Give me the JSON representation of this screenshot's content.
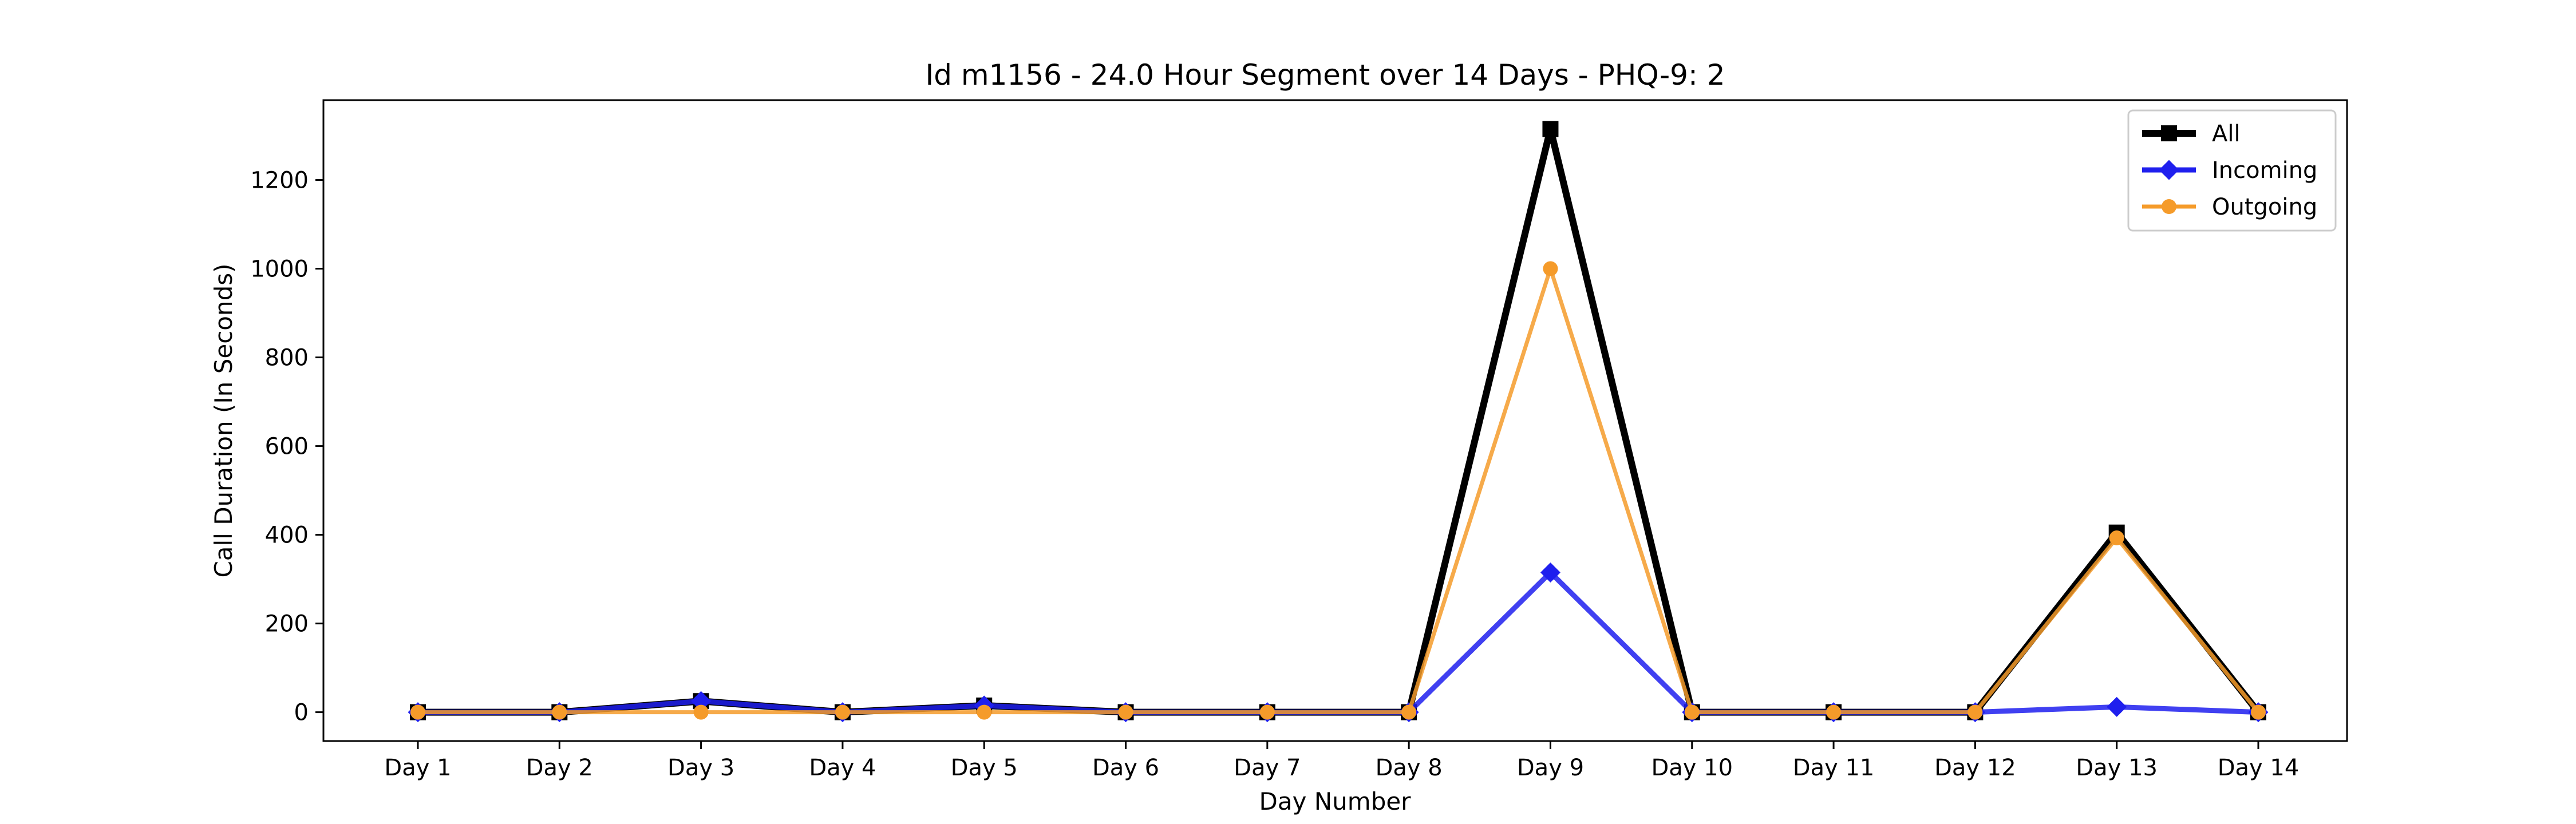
{
  "chart_data": {
    "type": "line",
    "title": "Id m1156 - 24.0 Hour Segment over 14 Days - PHQ-9: 2",
    "xlabel": "Day Number",
    "ylabel": "Call Duration (In Seconds)",
    "categories": [
      "Day 1",
      "Day 2",
      "Day 3",
      "Day 4",
      "Day 5",
      "Day 6",
      "Day 7",
      "Day 8",
      "Day 9",
      "Day 10",
      "Day 11",
      "Day 12",
      "Day 13",
      "Day 14"
    ],
    "ylim": [
      -65,
      1380
    ],
    "yticks": [
      0,
      200,
      400,
      600,
      800,
      1000,
      1200
    ],
    "legend_position": "top-right",
    "series": [
      {
        "name": "All",
        "color": "#000000",
        "marker": "square",
        "values": [
          0,
          0,
          25,
          0,
          15,
          0,
          0,
          0,
          1315,
          0,
          0,
          0,
          405,
          0
        ]
      },
      {
        "name": "Incoming",
        "color": "#1f1fee",
        "marker": "diamond",
        "values": [
          0,
          0,
          25,
          0,
          15,
          0,
          0,
          0,
          315,
          0,
          0,
          0,
          12,
          0
        ]
      },
      {
        "name": "Outgoing",
        "color": "#f59b2a",
        "marker": "circle",
        "values": [
          0,
          0,
          0,
          0,
          0,
          0,
          0,
          0,
          1000,
          0,
          0,
          0,
          393,
          0
        ]
      }
    ]
  }
}
